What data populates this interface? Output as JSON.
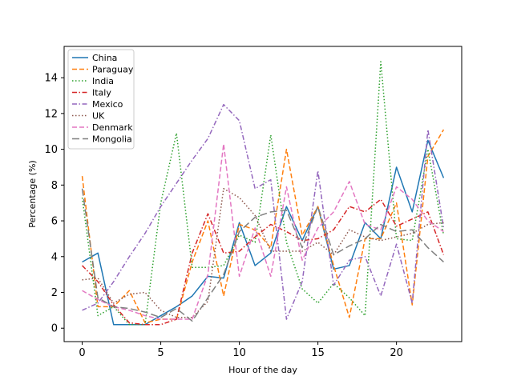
{
  "chart_data": {
    "type": "line",
    "title": "",
    "xlabel": "Hour of the day",
    "ylabel": "Percentage (%)",
    "xlim": [
      -1.15,
      24.15
    ],
    "ylim": [
      -0.75,
      15.75
    ],
    "x_ticks": [
      0,
      5,
      10,
      15,
      20
    ],
    "y_ticks": [
      0,
      2,
      4,
      6,
      8,
      10,
      12,
      14
    ],
    "grid": false,
    "legend_position": "top-left",
    "x": [
      0,
      1,
      2,
      3,
      4,
      5,
      6,
      7,
      8,
      9,
      10,
      11,
      12,
      13,
      14,
      15,
      16,
      17,
      18,
      19,
      20,
      21,
      22,
      23
    ],
    "series": [
      {
        "name": "China",
        "color": "#1f77b4",
        "dash": "solid",
        "values": [
          3.7,
          4.2,
          0.2,
          0.2,
          0.2,
          0.7,
          1.2,
          1.8,
          2.9,
          2.8,
          5.9,
          3.5,
          4.2,
          6.8,
          4.9,
          6.8,
          3.3,
          3.5,
          5.9,
          5.0,
          9.0,
          6.5,
          10.5,
          8.4
        ]
      },
      {
        "name": "Paraguay",
        "color": "#ff7f0e",
        "dash": "dashed",
        "values": [
          8.5,
          1.2,
          1.2,
          2.1,
          0.3,
          0.5,
          0.5,
          3.7,
          6.0,
          1.8,
          5.8,
          5.5,
          4.5,
          10.0,
          5.2,
          6.8,
          3.5,
          0.6,
          5.0,
          5.0,
          7.0,
          1.3,
          9.6,
          11.1
        ]
      },
      {
        "name": "India",
        "color": "#2ca02c",
        "dash": "dotted",
        "values": [
          7.3,
          0.7,
          1.2,
          0.2,
          0.2,
          7.0,
          10.9,
          3.4,
          3.4,
          3.5,
          5.2,
          4.8,
          10.8,
          4.8,
          2.2,
          1.4,
          2.5,
          1.7,
          0.7,
          14.9,
          5.0,
          4.9,
          10.0,
          5.2
        ]
      },
      {
        "name": "Italy",
        "color": "#d62728",
        "dash": "dashdot",
        "values": [
          3.5,
          2.6,
          1.3,
          0.3,
          0.2,
          0.2,
          0.5,
          4.2,
          6.4,
          4.2,
          4.3,
          5.1,
          5.8,
          5.4,
          4.9,
          5.0,
          5.5,
          6.8,
          6.5,
          7.2,
          5.7,
          6.1,
          6.5,
          4.1
        ]
      },
      {
        "name": "Mexico",
        "color": "#9467bd",
        "dash": "dashdot",
        "values": [
          1.0,
          1.4,
          2.6,
          4.0,
          5.3,
          6.8,
          8.1,
          9.4,
          10.6,
          12.5,
          11.6,
          7.8,
          8.3,
          0.5,
          2.6,
          8.8,
          2.4,
          3.8,
          4.0,
          1.8,
          4.7,
          1.4,
          11.1,
          5.6
        ]
      },
      {
        "name": "UK",
        "color": "#8c564b",
        "dash": "dotted",
        "values": [
          2.7,
          2.8,
          1.4,
          1.9,
          2.0,
          1.0,
          0.6,
          0.6,
          1.5,
          7.8,
          7.3,
          6.3,
          4.3,
          4.3,
          4.3,
          4.8,
          4.1,
          5.5,
          5.1,
          4.9,
          5.1,
          5.3,
          5.8,
          5.9
        ]
      },
      {
        "name": "Denmark",
        "color": "#e377c2",
        "dash": "dashed",
        "values": [
          2.1,
          1.6,
          1.2,
          1.0,
          0.7,
          0.5,
          0.5,
          0.5,
          3.0,
          10.3,
          2.9,
          5.6,
          2.9,
          7.9,
          3.8,
          5.6,
          6.5,
          8.2,
          5.8,
          5.5,
          7.9,
          7.2,
          6.0,
          5.4
        ]
      },
      {
        "name": "Mongolia",
        "color": "#7f7f7f",
        "dash": "longdash",
        "values": [
          7.8,
          1.7,
          1.2,
          1.1,
          0.9,
          0.6,
          1.1,
          0.4,
          1.7,
          3.0,
          5.4,
          6.2,
          6.5,
          6.6,
          4.5,
          6.8,
          4.1,
          4.6,
          5.0,
          5.8,
          5.4,
          5.5,
          4.5,
          3.7
        ]
      }
    ]
  }
}
